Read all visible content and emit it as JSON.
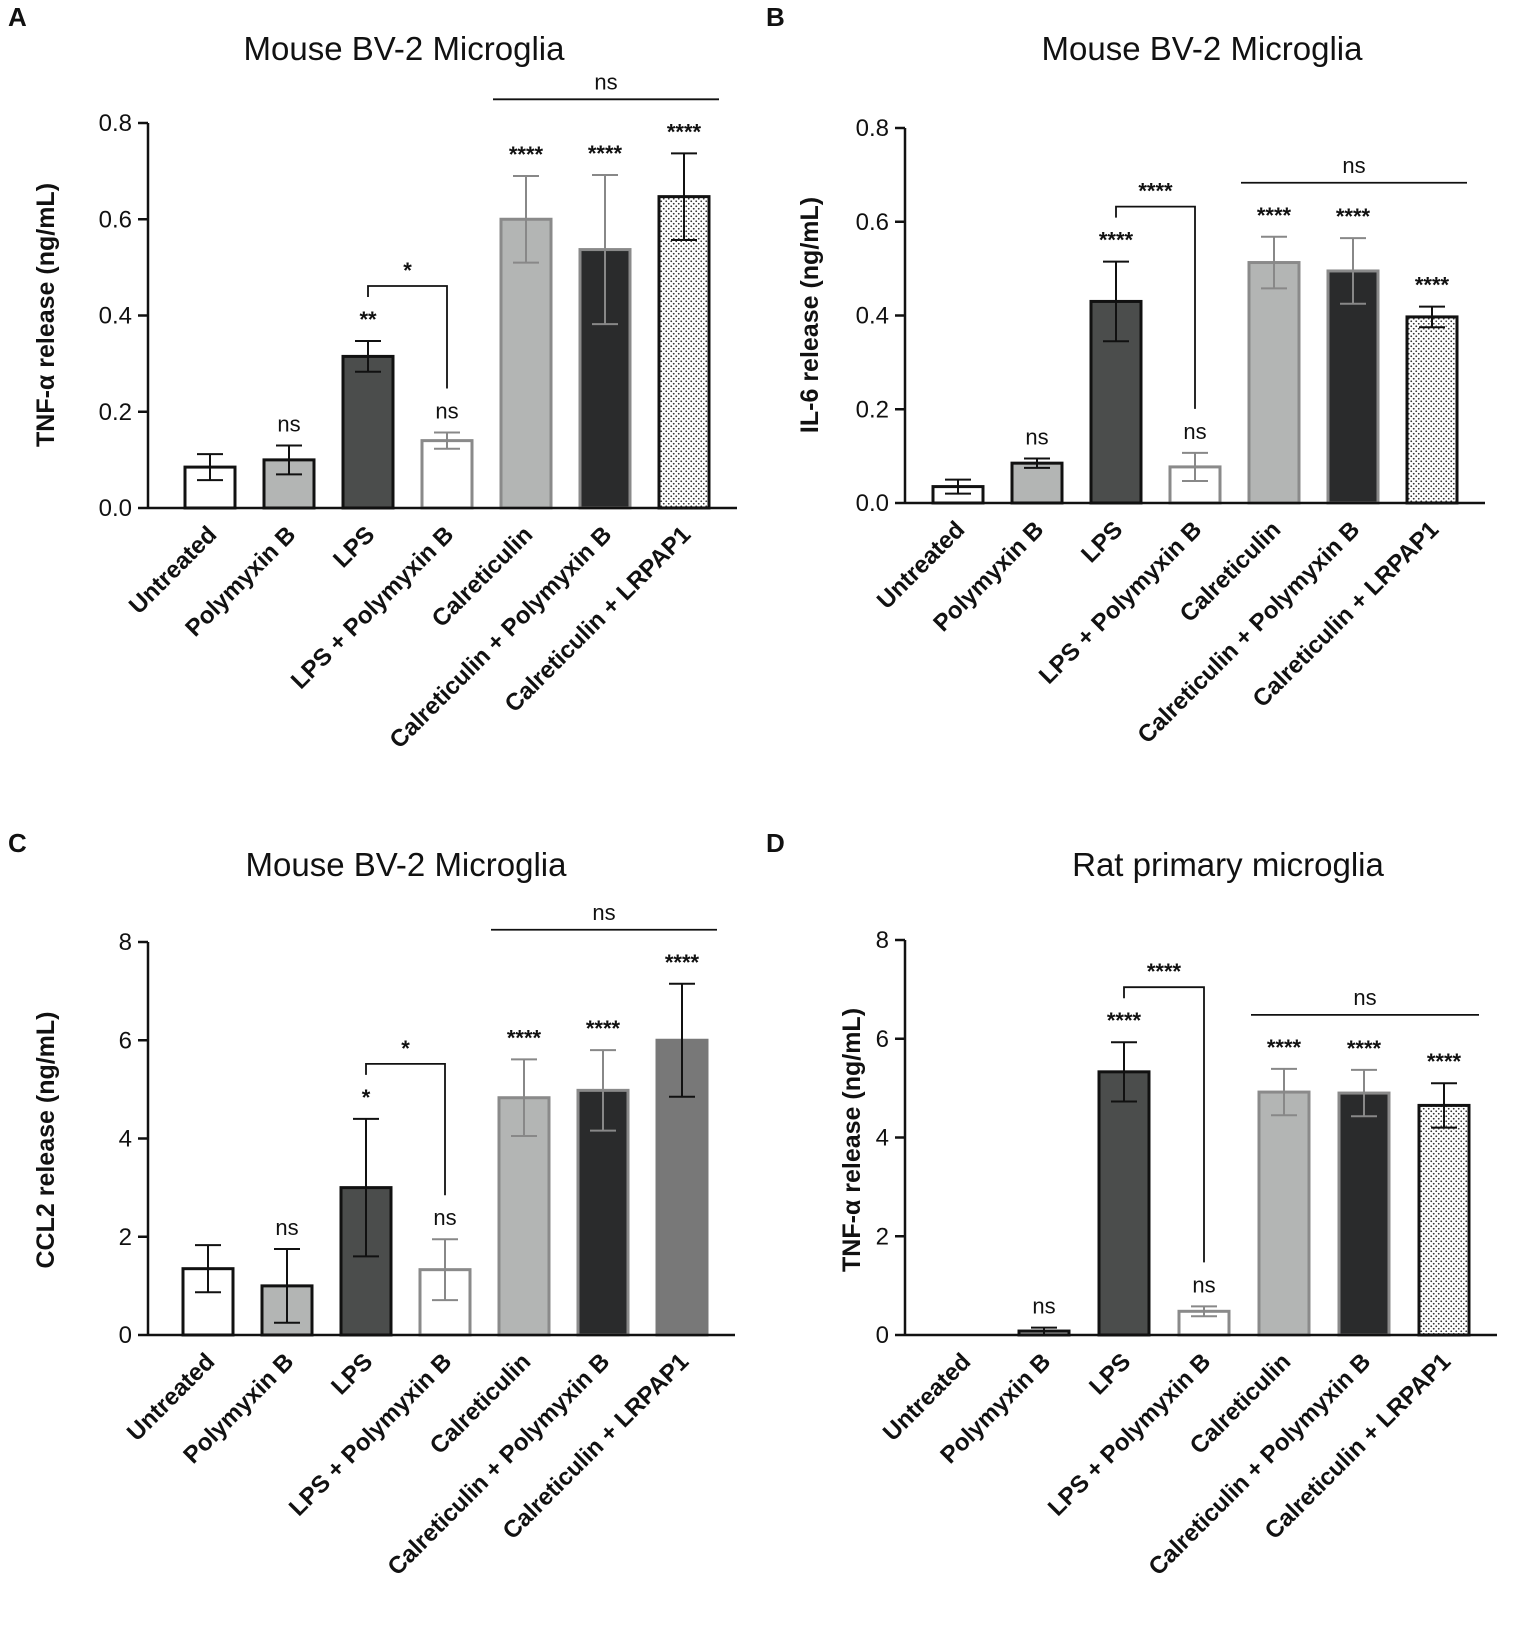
{
  "colors": {
    "axis": "#111111",
    "white": "#ffffff",
    "light_gray": "#b3b5b4",
    "dark_gray": "#4b4d4c",
    "near_black": "#2a2b2c",
    "mid_gray": "#787878",
    "light_gray_edge": "#8a8a8a",
    "error_bar_light": "#888888"
  },
  "chart_data": [
    {
      "panel": "A",
      "type": "bar",
      "title": "Mouse BV-2 Microglia",
      "ylabel": "TNF-α release (ng/mL)",
      "ylim": [
        0,
        0.8
      ],
      "yticks": [
        "0.0",
        "0.2",
        "0.4",
        "0.6",
        "0.8"
      ],
      "ytick_values": [
        0,
        0.2,
        0.4,
        0.6,
        0.8
      ],
      "categories": [
        "Untreated",
        "Polymyxin B",
        "LPS",
        "LPS + Polymyxin B",
        "Calreticulin",
        "Calreticulin + Polymyxin B",
        "Calreticulin + LRPAP1"
      ],
      "values": [
        0.085,
        0.1,
        0.315,
        0.14,
        0.6,
        0.537,
        0.647
      ],
      "errors": [
        0.027,
        0.03,
        0.032,
        0.017,
        0.09,
        0.155,
        0.09
      ],
      "styles": [
        "white",
        "light_gray",
        "dark_gray",
        "white_gray",
        "light_gray_gray",
        "near_black_gray",
        "dotted"
      ],
      "significance": [
        "",
        "ns",
        "**",
        "ns",
        "****",
        "****",
        "****"
      ],
      "brackets": [
        {
          "from": 2,
          "to": 3,
          "label": "*"
        }
      ],
      "group_lines": [
        {
          "from": 4,
          "to": 6,
          "label": "ns"
        }
      ]
    },
    {
      "panel": "B",
      "type": "bar",
      "title": "Mouse BV-2 Microglia",
      "ylabel": "IL-6 release (ng/mL)",
      "ylim": [
        0,
        0.8
      ],
      "yticks": [
        "0.0",
        "0.2",
        "0.4",
        "0.6",
        "0.8"
      ],
      "ytick_values": [
        0,
        0.2,
        0.4,
        0.6,
        0.8
      ],
      "categories": [
        "Untreated",
        "Polymyxin B",
        "LPS",
        "LPS + Polymyxin B",
        "Calreticulin",
        "Calreticulin + Polymyxin B",
        "Calreticulin + LRPAP1"
      ],
      "values": [
        0.035,
        0.085,
        0.43,
        0.077,
        0.513,
        0.495,
        0.397
      ],
      "errors": [
        0.015,
        0.01,
        0.085,
        0.03,
        0.055,
        0.07,
        0.022
      ],
      "styles": [
        "white",
        "light_gray",
        "dark_gray",
        "white_gray",
        "light_gray_gray",
        "near_black_gray",
        "dotted"
      ],
      "significance": [
        "",
        "ns",
        "****",
        "ns",
        "****",
        "****",
        "****"
      ],
      "brackets": [
        {
          "from": 2,
          "to": 3,
          "label": "****"
        }
      ],
      "group_lines": [
        {
          "from": 4,
          "to": 6,
          "label": "ns"
        }
      ]
    },
    {
      "panel": "C",
      "type": "bar",
      "title": "Mouse BV-2 Microglia",
      "ylabel": "CCL2 release (ng/mL)",
      "ylim": [
        0,
        8
      ],
      "yticks": [
        "0",
        "2",
        "4",
        "6",
        "8"
      ],
      "ytick_values": [
        0,
        2,
        4,
        6,
        8
      ],
      "categories": [
        "Untreated",
        "Polymyxin B",
        "LPS",
        "LPS + Polymyxin B",
        "Calreticulin",
        "Calreticulin + Polymyxin B",
        "Calreticulin + LRPAP1"
      ],
      "values": [
        1.35,
        1.0,
        3.0,
        1.33,
        4.83,
        4.98,
        6.0
      ],
      "errors": [
        0.48,
        0.75,
        1.4,
        0.62,
        0.78,
        0.82,
        1.15
      ],
      "styles": [
        "white",
        "light_gray",
        "dark_gray",
        "white_gray",
        "light_gray_gray",
        "near_black_gray",
        "mid_gray"
      ],
      "significance": [
        "",
        "ns",
        "*",
        "ns",
        "****",
        "****",
        "****"
      ],
      "brackets": [
        {
          "from": 2,
          "to": 3,
          "label": "*"
        }
      ],
      "group_lines": [
        {
          "from": 4,
          "to": 6,
          "label": "ns"
        }
      ]
    },
    {
      "panel": "D",
      "type": "bar",
      "title": "Rat primary microglia",
      "ylabel": "TNF-α release (ng/mL)",
      "ylim": [
        0,
        8
      ],
      "yticks": [
        "0",
        "2",
        "4",
        "6",
        "8"
      ],
      "ytick_values": [
        0,
        2,
        4,
        6,
        8
      ],
      "categories": [
        "Untreated",
        "Polymyxin B",
        "LPS",
        "LPS + Polymyxin B",
        "Calreticulin",
        "Calreticulin + Polymyxin B",
        "Calreticulin + LRPAP1"
      ],
      "values": [
        0.0,
        0.08,
        5.33,
        0.48,
        4.92,
        4.9,
        4.65
      ],
      "errors": [
        0.0,
        0.07,
        0.6,
        0.1,
        0.47,
        0.47,
        0.45
      ],
      "styles": [
        "white",
        "light_gray",
        "dark_gray",
        "white_gray",
        "light_gray_gray",
        "near_black_gray",
        "dotted"
      ],
      "significance": [
        "",
        "ns",
        "****",
        "ns",
        "****",
        "****",
        "****"
      ],
      "brackets": [
        {
          "from": 2,
          "to": 3,
          "label": "****"
        }
      ],
      "group_lines": [
        {
          "from": 4,
          "to": 6,
          "label": "ns"
        }
      ]
    }
  ]
}
